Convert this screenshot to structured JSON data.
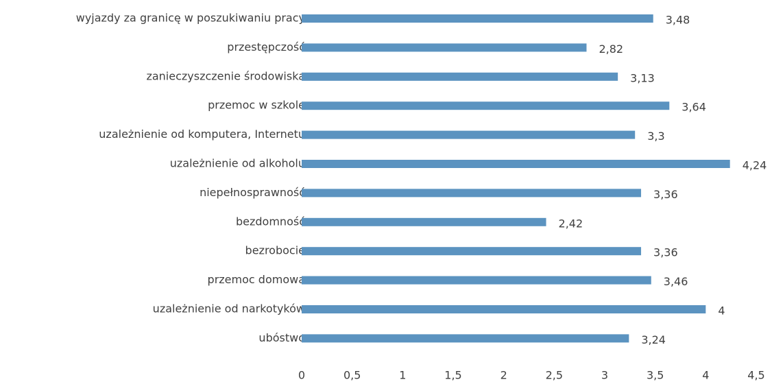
{
  "chart_data": {
    "type": "bar",
    "orientation": "horizontal",
    "categories": [
      "wyjazdy za granicę w poszukiwaniu pracy",
      "przestępczość",
      "zanieczyszczenie środowiska",
      "przemoc w szkole",
      "uzależnienie od komputera, Internetu",
      "uzależnienie od alkoholu",
      "niepełnosprawność",
      "bezdomność",
      "bezrobocie",
      "przemoc domowa",
      "uzależnienie od narkotyków",
      "ubóstwo"
    ],
    "values": [
      3.48,
      2.82,
      3.13,
      3.64,
      3.3,
      4.24,
      3.36,
      2.42,
      3.36,
      3.46,
      4,
      3.24
    ],
    "value_labels": [
      "3,48",
      "2,82",
      "3,13",
      "3,64",
      "3,3",
      "4,24",
      "3,36",
      "2,42",
      "3,36",
      "3,46",
      "4",
      "3,24"
    ],
    "color": "#5b93c0",
    "xlim": [
      0,
      4.5
    ],
    "xticks": [
      0,
      {
        "value": 0.5,
        "label": "0,5"
      },
      1,
      {
        "value": 1.5,
        "label": "1,5"
      },
      2,
      {
        "value": 2.5,
        "label": "2,5"
      },
      3,
      {
        "value": 3.5,
        "label": "3,5"
      },
      4,
      {
        "value": 4.5,
        "label": "4,5"
      }
    ],
    "grid": false
  }
}
